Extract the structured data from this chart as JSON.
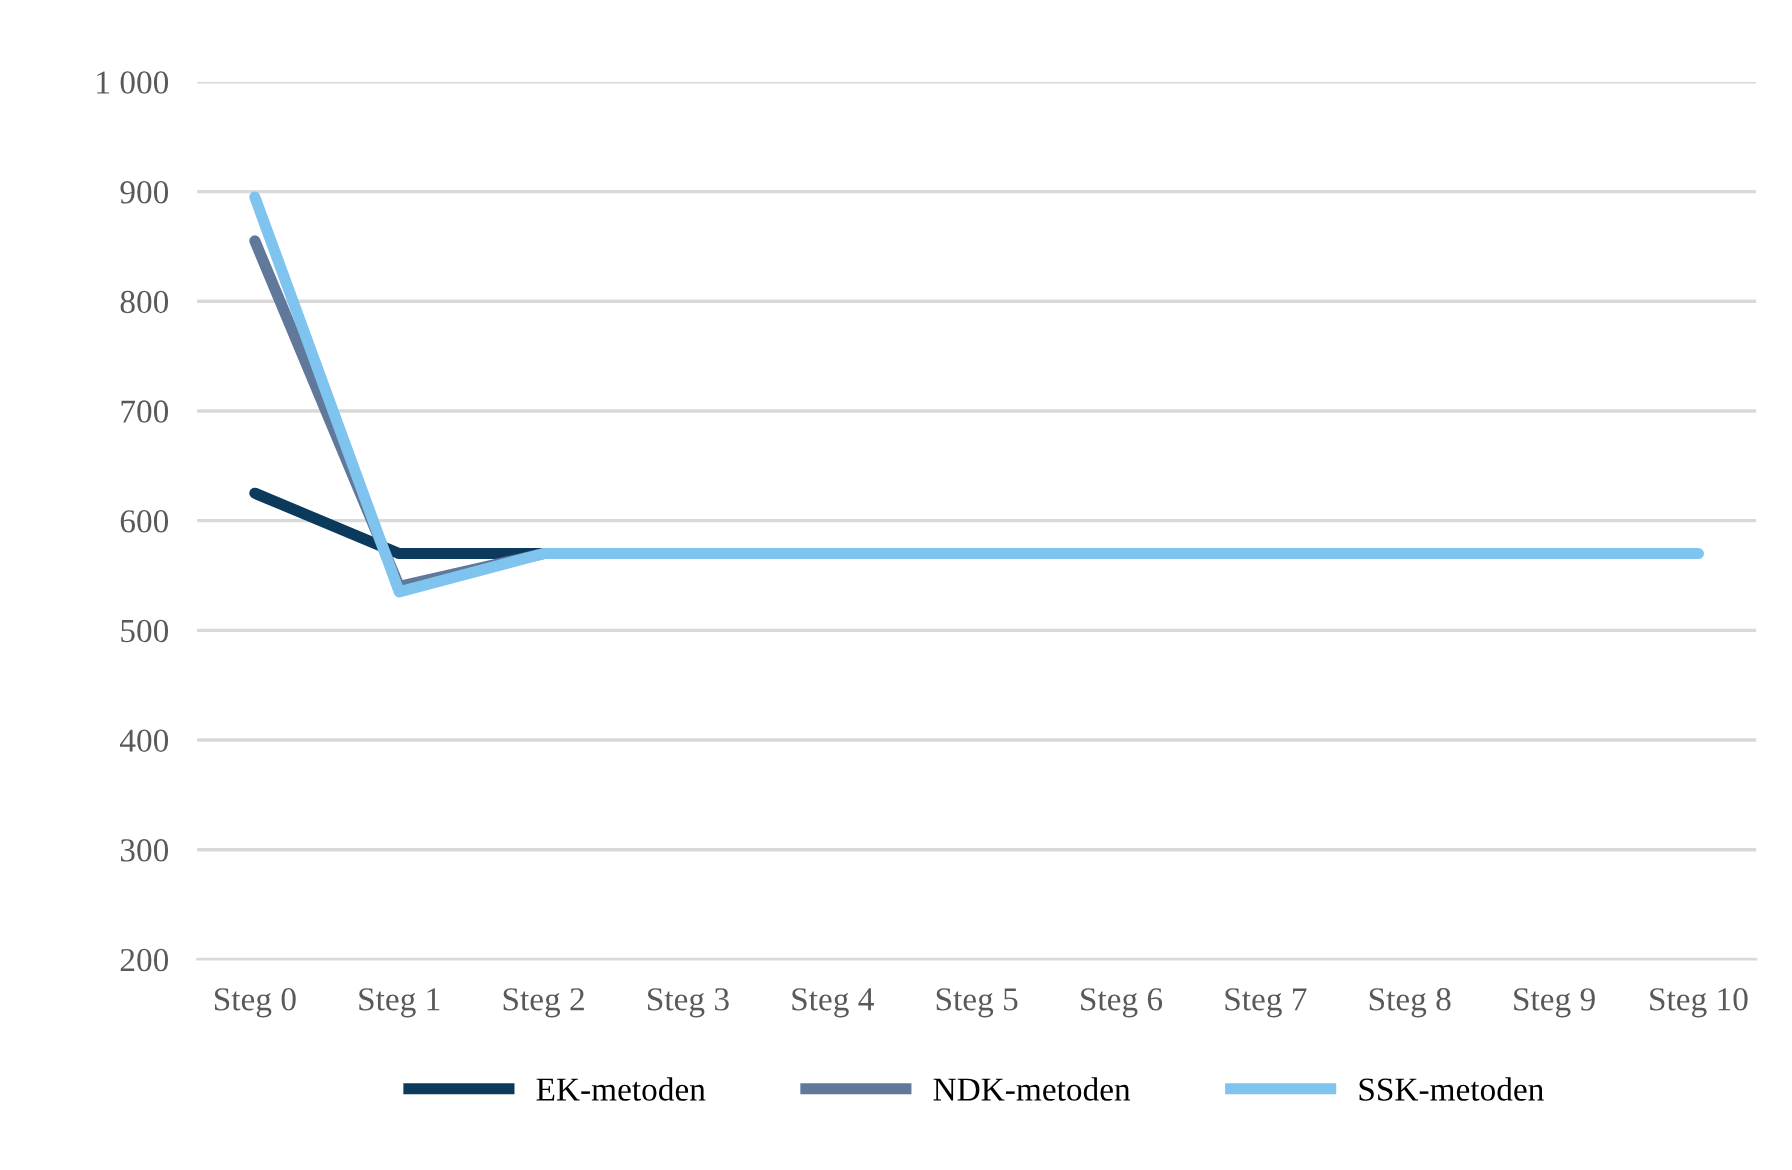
{
  "chart_data": {
    "type": "line",
    "categories": [
      "Steg 0",
      "Steg 1",
      "Steg 2",
      "Steg 3",
      "Steg 4",
      "Steg 5",
      "Steg 6",
      "Steg 7",
      "Steg 8",
      "Steg 9",
      "Steg 10"
    ],
    "series": [
      {
        "name": "EK-metoden",
        "color": "#0b3a5c",
        "values": [
          625,
          570,
          570,
          null,
          null,
          null,
          null,
          null,
          null,
          null,
          null
        ]
      },
      {
        "name": "NDK-metoden",
        "color": "#60789a",
        "values": [
          855,
          540,
          570,
          null,
          null,
          null,
          null,
          null,
          null,
          null,
          null
        ]
      },
      {
        "name": "SSK-metoden",
        "color": "#7fc4ee",
        "values": [
          895,
          535,
          570,
          570,
          570,
          570,
          570,
          570,
          570,
          570,
          570
        ]
      }
    ],
    "ylim": [
      200,
      1000
    ],
    "yticks": [
      200,
      300,
      400,
      500,
      600,
      700,
      800,
      900,
      {
        "value": 1000,
        "label": "1 000"
      }
    ],
    "grid": "y",
    "legend": "bottom",
    "marker": "none",
    "line_style": "solid"
  }
}
